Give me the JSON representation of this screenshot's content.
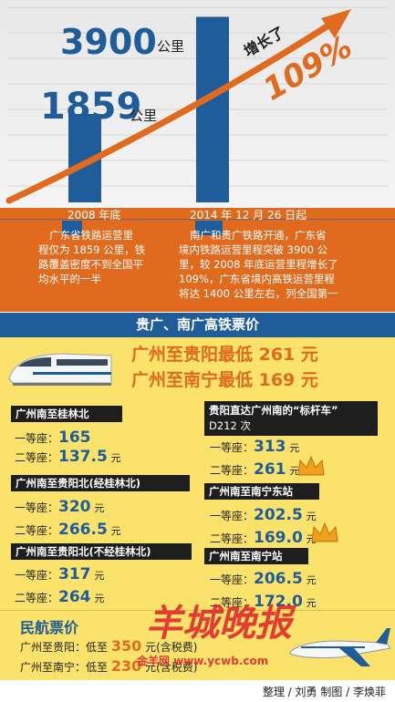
{
  "chart_data": {
    "type": "bar",
    "categories": [
      "2008年底",
      "2014年12月26日起"
    ],
    "values": [
      1859,
      3900
    ],
    "unit": "公里",
    "growth_label": "增长了",
    "growth_value": "109%",
    "ylim": [
      0,
      4100
    ]
  },
  "bars": {
    "bar1_value": "1859",
    "bar2_value": "3900",
    "unit": "公里"
  },
  "info": {
    "left_date": "2008 年底",
    "right_date": "2014 年 12 月 26 日起",
    "left_text": [
      "广东省铁路运营里",
      "程仅为 1859 公里，铁",
      "路覆盖密度不到全国平",
      "均水平的一半"
    ],
    "right_text": [
      "南广和贵广铁路开通，广东省",
      "境内铁路运营里程突破 3900 公",
      "里，较 2008 年底运营里程增长了",
      "109%，广东省境内高铁运营里程",
      "将达 1400 公里左右，列全国第一"
    ]
  },
  "rail_section": {
    "title": "贵广、南广高铁票价",
    "headline1": "广州至贵阳最低 261 元",
    "headline2": "广州至南宁最低 169 元"
  },
  "routes": [
    {
      "name": "广州南至桂林北",
      "first_label": "一等座：",
      "first_price": "165",
      "second_label": "二等座：",
      "second_price": "137.5",
      "yuan": "元"
    },
    {
      "name": "广州南至贵阳北(经桂林北)",
      "first_label": "一等座：",
      "first_price": "320",
      "second_label": "二等座：",
      "second_price": "266.5",
      "yuan": "元"
    },
    {
      "name": "广州南至贵阳北(不经桂林北)",
      "first_label": "一等座：",
      "first_price": "317",
      "second_label": "二等座：",
      "second_price": "264",
      "yuan": "元"
    },
    {
      "name": "贵阳直达广州南的“标杆车”",
      "name2": "D212 次",
      "first_label": "一等座：",
      "first_price": "313",
      "second_label": "二等座：",
      "second_price": "261",
      "yuan": "元"
    },
    {
      "name": "广州南至南宁东站",
      "first_label": "一等座：",
      "first_price": "202.5",
      "second_label": "二等座：",
      "second_price": "169.0",
      "yuan": "元"
    },
    {
      "name": "广州南至南宁站",
      "first_label": "一等座：",
      "first_price": "206.5",
      "second_label": "二等座：",
      "second_price": "172.0",
      "yuan": "元"
    }
  ],
  "air": {
    "title": "民航票价",
    "line1_prefix": "广州至贵阳：低至",
    "line1_price": "350",
    "line1_suffix": "元(含税费)",
    "line2_prefix": "广州至南宁：低至",
    "line2_price": "230",
    "line2_suffix": "元(含税费)",
    "watermark": "羊城晚报",
    "watermark_site": "金羊网 www.ycwb.com"
  },
  "credit": "整理 / 刘勇  制图 / 李焕菲",
  "colors": {
    "blue": "#1f5c9a",
    "orange": "#e06a1e",
    "yellow": "#fbe26a",
    "crown": "#f0a020"
  }
}
